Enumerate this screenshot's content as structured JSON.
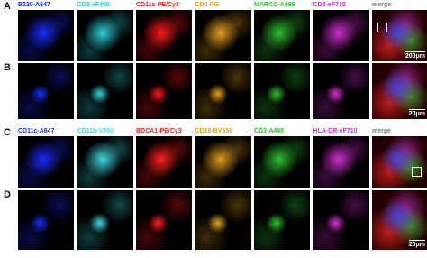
{
  "figure": {
    "rows": [
      {
        "letter": "A",
        "labels": [
          "B220-A647",
          "CD3-eF450",
          "CD11c-PE/Cy3",
          "CD4-PG",
          "MARCO-A488",
          "CD8-eF710",
          "merge"
        ],
        "scale_bar": "200μm"
      },
      {
        "letter": "B",
        "scale_bar": "20μm"
      },
      {
        "letter": "C",
        "labels": [
          "CD11c-A647",
          "CD11b-V450",
          "BDCA1-PE/Cy3",
          "CD19-BV650",
          "CD3-A488",
          "HLA-DR-eF710",
          "merge"
        ]
      },
      {
        "letter": "D",
        "scale_bar": "20μm"
      }
    ]
  }
}
